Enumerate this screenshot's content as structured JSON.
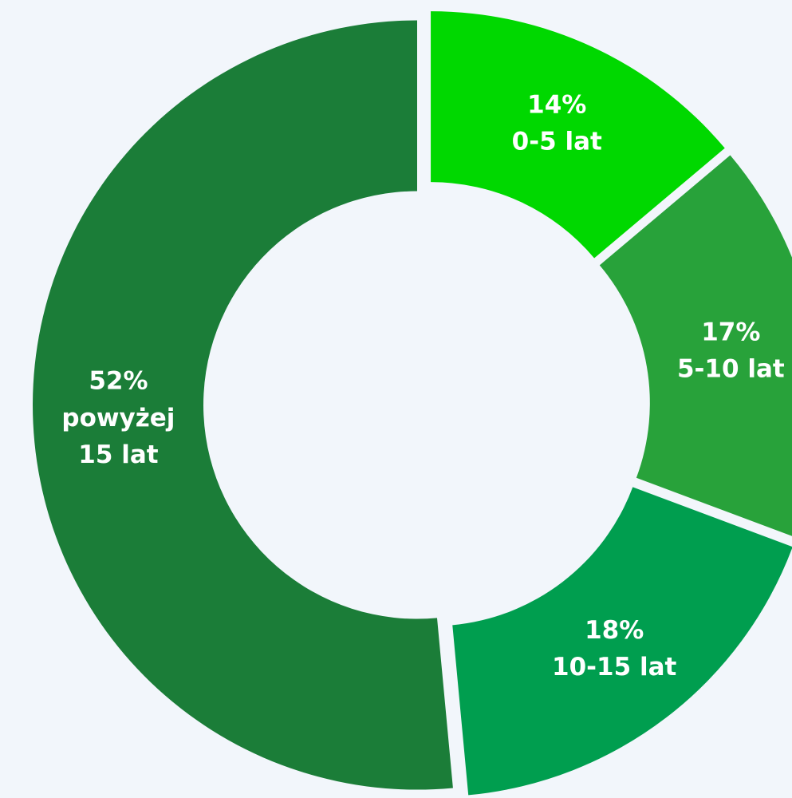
{
  "chart_data": {
    "type": "donut",
    "categories": [
      "0-5 lat",
      "5-10 lat",
      "10-15 lat",
      "powyżej 15 lat"
    ],
    "values": [
      14,
      17,
      18,
      52
    ],
    "value_labels": [
      "14%",
      "17%",
      "18%",
      "52%"
    ],
    "colors": [
      "#00d800",
      "#28a23a",
      "#009e4f",
      "#1b7d38"
    ]
  }
}
